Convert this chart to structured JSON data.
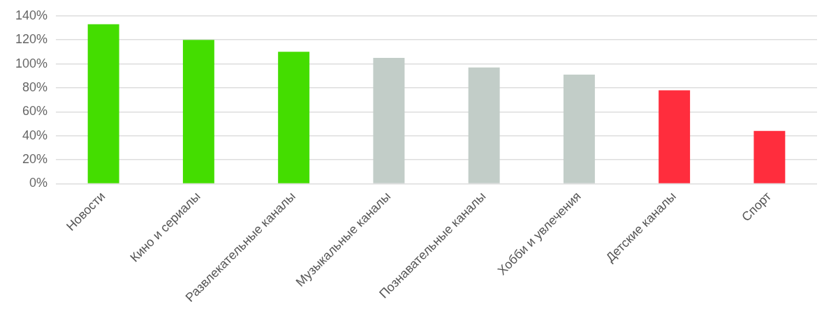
{
  "chart_data": {
    "type": "bar",
    "categories": [
      "Новости",
      "Кино и сериалы",
      "Развлекательные каналы",
      "Музыкальные каналы",
      "Познавательные каналы",
      "Хобби и увлечения",
      "Детские каналы",
      "Спорт"
    ],
    "values": [
      133,
      120,
      110,
      105,
      97,
      91,
      78,
      44
    ],
    "colors": [
      "#44dd00",
      "#44dd00",
      "#44dd00",
      "#c2cdc8",
      "#c2cdc8",
      "#c2cdc8",
      "#ff2d3d",
      "#ff2d3d"
    ],
    "ylim": [
      0,
      140
    ],
    "yticks": [
      {
        "value": 0,
        "label": "0%"
      },
      {
        "value": 20,
        "label": "20%"
      },
      {
        "value": 40,
        "label": "40%"
      },
      {
        "value": 60,
        "label": "60%"
      },
      {
        "value": 80,
        "label": "80%"
      },
      {
        "value": 100,
        "label": "100%"
      },
      {
        "value": 120,
        "label": "120%"
      },
      {
        "value": 140,
        "label": "140%"
      }
    ],
    "grid": "y"
  }
}
